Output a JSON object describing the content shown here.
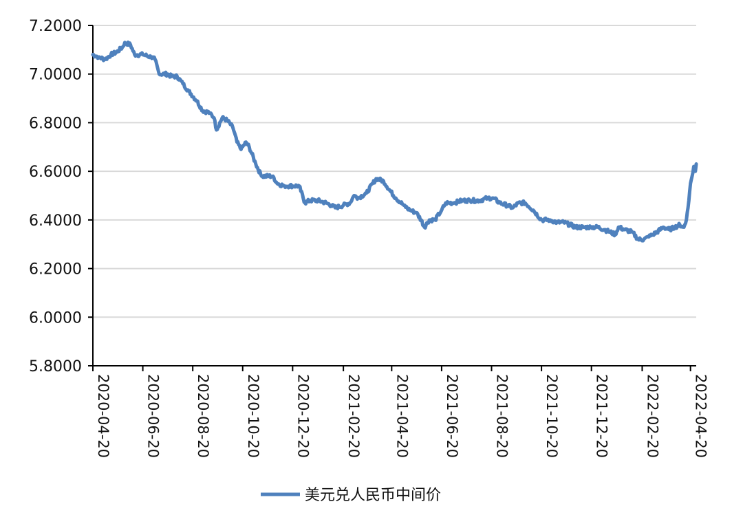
{
  "chart_data": {
    "type": "line",
    "title": "",
    "xlabel": "",
    "ylabel": "",
    "x_range": [
      "2020-04-20",
      "2022-04-27"
    ],
    "ylim": [
      5.8,
      7.2
    ],
    "y_ticks": [
      "7.2000",
      "7.0000",
      "6.8000",
      "6.6000",
      "6.4000",
      "6.2000",
      "6.0000",
      "5.8000"
    ],
    "x_ticks": [
      "2020-04-20",
      "2020-06-20",
      "2020-08-20",
      "2020-10-20",
      "2020-12-20",
      "2021-02-20",
      "2021-04-20",
      "2021-06-20",
      "2021-08-20",
      "2021-10-20",
      "2021-12-20",
      "2022-02-20",
      "2022-04-20"
    ],
    "grid": "horizontal",
    "legend_position": "bottom-center",
    "series": [
      {
        "name": "美元兑人民币中间价",
        "color": "#4f81bd",
        "points": [
          [
            "2020-04-20",
            7.08
          ],
          [
            "2020-04-27",
            7.07
          ],
          [
            "2020-05-05",
            7.06
          ],
          [
            "2020-05-12",
            7.08
          ],
          [
            "2020-05-19",
            7.09
          ],
          [
            "2020-05-26",
            7.11
          ],
          [
            "2020-05-29",
            7.13
          ],
          [
            "2020-06-05",
            7.12
          ],
          [
            "2020-06-10",
            7.08
          ],
          [
            "2020-06-20",
            7.08
          ],
          [
            "2020-06-30",
            7.07
          ],
          [
            "2020-07-05",
            7.06
          ],
          [
            "2020-07-10",
            7.0
          ],
          [
            "2020-07-20",
            7.0
          ],
          [
            "2020-07-25",
            6.99
          ],
          [
            "2020-08-01",
            6.99
          ],
          [
            "2020-08-08",
            6.96
          ],
          [
            "2020-08-15",
            6.93
          ],
          [
            "2020-08-25",
            6.89
          ],
          [
            "2020-09-01",
            6.85
          ],
          [
            "2020-09-10",
            6.84
          ],
          [
            "2020-09-15",
            6.82
          ],
          [
            "2020-09-18",
            6.77
          ],
          [
            "2020-09-25",
            6.82
          ],
          [
            "2020-10-01",
            6.81
          ],
          [
            "2020-10-08",
            6.78
          ],
          [
            "2020-10-13",
            6.72
          ],
          [
            "2020-10-18",
            6.69
          ],
          [
            "2020-10-24",
            6.72
          ],
          [
            "2020-10-28",
            6.7
          ],
          [
            "2020-11-05",
            6.63
          ],
          [
            "2020-11-12",
            6.58
          ],
          [
            "2020-11-20",
            6.58
          ],
          [
            "2020-11-26",
            6.58
          ],
          [
            "2020-12-01",
            6.55
          ],
          [
            "2020-12-10",
            6.54
          ],
          [
            "2020-12-20",
            6.54
          ],
          [
            "2020-12-28",
            6.54
          ],
          [
            "2021-01-04",
            6.47
          ],
          [
            "2021-01-10",
            6.48
          ],
          [
            "2021-01-20",
            6.48
          ],
          [
            "2021-01-30",
            6.47
          ],
          [
            "2021-02-05",
            6.46
          ],
          [
            "2021-02-10",
            6.45
          ],
          [
            "2021-02-20",
            6.46
          ],
          [
            "2021-02-28",
            6.47
          ],
          [
            "2021-03-05",
            6.5
          ],
          [
            "2021-03-10",
            6.49
          ],
          [
            "2021-03-20",
            6.51
          ],
          [
            "2021-03-28",
            6.55
          ],
          [
            "2021-04-01",
            6.57
          ],
          [
            "2021-04-10",
            6.56
          ],
          [
            "2021-04-18",
            6.52
          ],
          [
            "2021-04-25",
            6.49
          ],
          [
            "2021-05-05",
            6.46
          ],
          [
            "2021-05-12",
            6.44
          ],
          [
            "2021-05-20",
            6.43
          ],
          [
            "2021-05-26",
            6.4
          ],
          [
            "2021-05-30",
            6.37
          ],
          [
            "2021-06-05",
            6.4
          ],
          [
            "2021-06-12",
            6.4
          ],
          [
            "2021-06-20",
            6.44
          ],
          [
            "2021-06-25",
            6.47
          ],
          [
            "2021-07-05",
            6.47
          ],
          [
            "2021-07-15",
            6.48
          ],
          [
            "2021-07-25",
            6.48
          ],
          [
            "2021-08-05",
            6.48
          ],
          [
            "2021-08-15",
            6.49
          ],
          [
            "2021-08-22",
            6.49
          ],
          [
            "2021-08-30",
            6.47
          ],
          [
            "2021-09-08",
            6.46
          ],
          [
            "2021-09-15",
            6.45
          ],
          [
            "2021-09-22",
            6.47
          ],
          [
            "2021-09-30",
            6.47
          ],
          [
            "2021-10-10",
            6.44
          ],
          [
            "2021-10-20",
            6.4
          ],
          [
            "2021-10-30",
            6.4
          ],
          [
            "2021-11-08",
            6.39
          ],
          [
            "2021-11-16",
            6.39
          ],
          [
            "2021-11-24",
            6.38
          ],
          [
            "2021-12-01",
            6.37
          ],
          [
            "2021-12-10",
            6.37
          ],
          [
            "2021-12-20",
            6.37
          ],
          [
            "2021-12-28",
            6.37
          ],
          [
            "2022-01-05",
            6.36
          ],
          [
            "2022-01-12",
            6.35
          ],
          [
            "2022-01-18",
            6.34
          ],
          [
            "2022-01-22",
            6.37
          ],
          [
            "2022-01-30",
            6.36
          ],
          [
            "2022-02-08",
            6.35
          ],
          [
            "2022-02-15",
            6.32
          ],
          [
            "2022-02-22",
            6.32
          ],
          [
            "2022-02-28",
            6.33
          ],
          [
            "2022-03-05",
            6.34
          ],
          [
            "2022-03-10",
            6.35
          ],
          [
            "2022-03-18",
            6.37
          ],
          [
            "2022-03-25",
            6.36
          ],
          [
            "2022-04-01",
            6.37
          ],
          [
            "2022-04-07",
            6.38
          ],
          [
            "2022-04-12",
            6.37
          ],
          [
            "2022-04-15",
            6.4
          ],
          [
            "2022-04-17",
            6.45
          ],
          [
            "2022-04-20",
            6.55
          ],
          [
            "2022-04-22",
            6.58
          ],
          [
            "2022-04-24",
            6.62
          ],
          [
            "2022-04-26",
            6.6
          ],
          [
            "2022-04-27",
            6.63
          ]
        ]
      }
    ]
  }
}
